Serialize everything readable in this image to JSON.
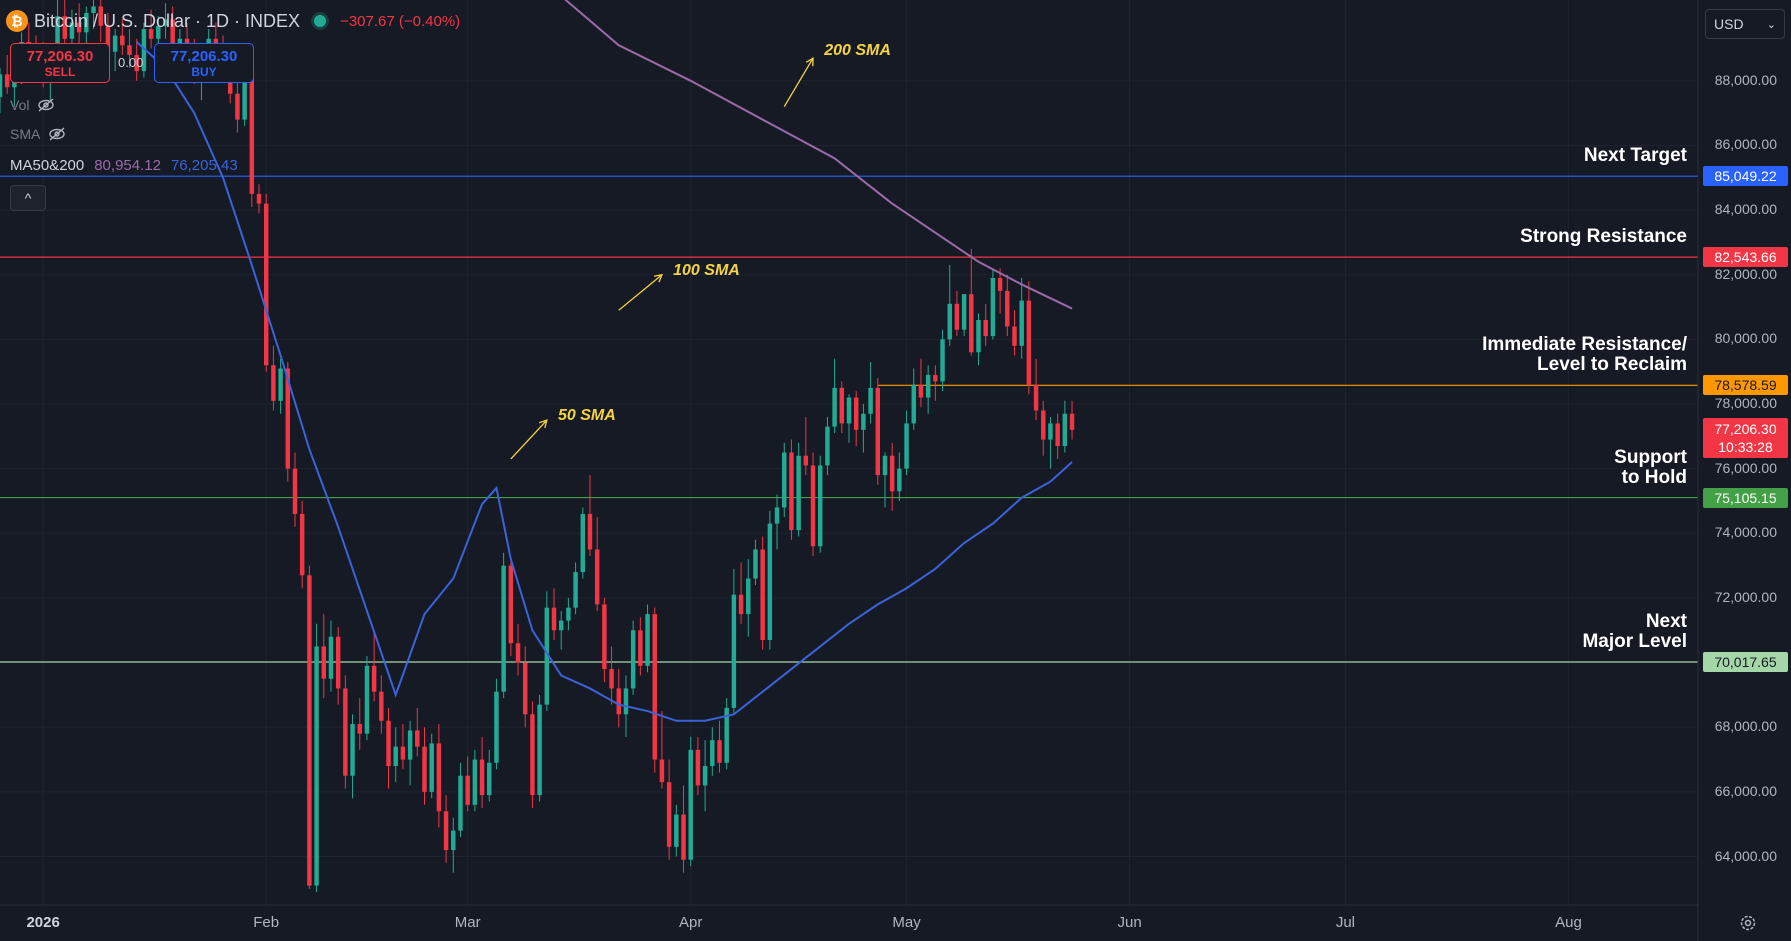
{
  "header": {
    "coin_icon": "bitcoin-icon",
    "symbol": "Bitcoin / U.S. Dollar · 1D · INDEX",
    "change": "−307.67 (−0.40%)"
  },
  "trade": {
    "sell_price": "77,206.30",
    "sell_label": "SELL",
    "spread": "0.00",
    "buy_price": "77,206.30",
    "buy_label": "BUY"
  },
  "legend": {
    "vol_label": "Vol",
    "sma_label": "SMA",
    "ma_name": "MA50&200",
    "ma_value_1": "80,954.12",
    "ma_value_2": "76,205.43",
    "collapse_icon": "^"
  },
  "currency": {
    "selected": "USD"
  },
  "levels": [
    {
      "name": "Next Target",
      "price": 85049.22,
      "price_label": "85,049.22",
      "color": "#2962ff"
    },
    {
      "name": "Strong Resistance",
      "price": 82543.66,
      "price_label": "82,543.66",
      "color": "#f23645"
    },
    {
      "name": "Immediate Resistance/\nLevel to Reclaim",
      "price": 78578.59,
      "price_label": "78,578.59",
      "color": "#ff9800"
    },
    {
      "name": "Support\nto Hold",
      "price": 75105.15,
      "price_label": "75,105.15",
      "color": "#43a047"
    },
    {
      "name": "Next\nMajor Level",
      "price": 70017.65,
      "price_label": "70,017.65",
      "color": "#a5d6a7"
    }
  ],
  "current_price": {
    "price": 77206.3,
    "label": "77,206.30",
    "countdown": "10:33:28"
  },
  "sma_annotations": [
    "200 SMA",
    "100 SMA",
    "50 SMA"
  ],
  "chart_data": {
    "type": "candlestick",
    "title": "Bitcoin / U.S. Dollar · 1D · INDEX",
    "ylim": [
      62500,
      90500
    ],
    "y_ticks": [
      64000,
      66000,
      68000,
      70000,
      72000,
      74000,
      76000,
      78000,
      80000,
      82000,
      84000,
      86000,
      88000
    ],
    "y_tick_labels": [
      "64,000.00",
      "66,000.00",
      "68,000.00",
      "70,000.00",
      "72,000.00",
      "74,000.00",
      "76,000.00",
      "78,000.00",
      "80,000.00",
      "82,000.00",
      "84,000.00",
      "86,000.00",
      "88,000.00"
    ],
    "x_ticks": [
      {
        "label": "2026",
        "day": 0,
        "bold": true
      },
      {
        "label": "Feb",
        "day": 31
      },
      {
        "label": "Mar",
        "day": 59
      },
      {
        "label": "Apr",
        "day": 90
      },
      {
        "label": "May",
        "day": 120
      },
      {
        "label": "Jun",
        "day": 151
      },
      {
        "label": "Jul",
        "day": 181
      },
      {
        "label": "Aug",
        "day": 212
      }
    ],
    "x_range_days": [
      -6,
      230
    ],
    "ohlc": [
      [
        -6,
        87500,
        88400,
        87000,
        88200
      ],
      [
        -5,
        88200,
        88800,
        87600,
        87800
      ],
      [
        -4,
        87800,
        88300,
        87200,
        88100
      ],
      [
        -3,
        88100,
        89500,
        87900,
        89200
      ],
      [
        -2,
        89200,
        89800,
        88600,
        88900
      ],
      [
        -1,
        88900,
        89400,
        88200,
        88700
      ],
      [
        0,
        88700,
        89200,
        87800,
        88000
      ],
      [
        1,
        88000,
        88600,
        87400,
        88400
      ],
      [
        2,
        88400,
        90500,
        88200,
        90000
      ],
      [
        3,
        90000,
        90500,
        89000,
        89300
      ],
      [
        4,
        89300,
        90200,
        88800,
        89800
      ],
      [
        5,
        89800,
        90400,
        89100,
        89500
      ],
      [
        6,
        89500,
        90300,
        88900,
        90100
      ],
      [
        7,
        90100,
        90800,
        89600,
        90300
      ],
      [
        8,
        90300,
        90600,
        89200,
        89700
      ],
      [
        9,
        89700,
        90100,
        88700,
        88900
      ],
      [
        10,
        88900,
        89600,
        88300,
        89400
      ],
      [
        11,
        89400,
        89900,
        88800,
        89100
      ],
      [
        12,
        89100,
        89600,
        88400,
        88800
      ],
      [
        13,
        88800,
        89300,
        88000,
        88300
      ],
      [
        14,
        88300,
        89800,
        88100,
        89600
      ],
      [
        15,
        89600,
        90200,
        89000,
        89300
      ],
      [
        16,
        89300,
        90000,
        88900,
        89700
      ],
      [
        17,
        89700,
        90400,
        89300,
        89900
      ],
      [
        18,
        89900,
        90300,
        88900,
        89000
      ],
      [
        19,
        89000,
        89600,
        88400,
        89300
      ],
      [
        20,
        89300,
        89800,
        88600,
        88900
      ],
      [
        21,
        88900,
        89300,
        87900,
        88100
      ],
      [
        22,
        88100,
        88800,
        87400,
        88500
      ],
      [
        23,
        88500,
        89600,
        88300,
        89300
      ],
      [
        24,
        89300,
        89800,
        88700,
        89100
      ],
      [
        25,
        89100,
        89400,
        88200,
        88500
      ],
      [
        26,
        88500,
        88900,
        87300,
        87600
      ],
      [
        27,
        87600,
        88200,
        86400,
        86800
      ],
      [
        28,
        86800,
        88600,
        86600,
        88300
      ],
      [
        29,
        88300,
        88800,
        84100,
        84500
      ],
      [
        30,
        84500,
        84800,
        83900,
        84200
      ],
      [
        31,
        84200,
        84500,
        79000,
        79200
      ],
      [
        32,
        79200,
        79800,
        77800,
        78100
      ],
      [
        33,
        78100,
        79400,
        77700,
        79100
      ],
      [
        34,
        79100,
        79300,
        75600,
        76000
      ],
      [
        35,
        76000,
        76500,
        74200,
        74600
      ],
      [
        36,
        74600,
        75000,
        72300,
        72700
      ],
      [
        37,
        72700,
        73000,
        63000,
        63100
      ],
      [
        38,
        63100,
        71200,
        62900,
        70500
      ],
      [
        39,
        70500,
        71500,
        68900,
        69500
      ],
      [
        40,
        69500,
        71300,
        69100,
        70800
      ],
      [
        41,
        70800,
        71100,
        68700,
        69200
      ],
      [
        42,
        69200,
        69600,
        66100,
        66500
      ],
      [
        43,
        66500,
        68400,
        65800,
        68100
      ],
      [
        44,
        68100,
        68900,
        67300,
        67800
      ],
      [
        45,
        67800,
        70200,
        67600,
        69900
      ],
      [
        46,
        69900,
        71000,
        68800,
        69100
      ],
      [
        47,
        69100,
        69600,
        67800,
        68200
      ],
      [
        48,
        68200,
        68600,
        66100,
        66800
      ],
      [
        49,
        66800,
        68000,
        66300,
        67400
      ],
      [
        50,
        67400,
        68100,
        66700,
        67000
      ],
      [
        51,
        67000,
        68200,
        66200,
        67900
      ],
      [
        52,
        67900,
        68600,
        67100,
        67400
      ],
      [
        53,
        67400,
        68000,
        65600,
        66000
      ],
      [
        54,
        66000,
        67800,
        65800,
        67500
      ],
      [
        55,
        67500,
        68100,
        64900,
        65400
      ],
      [
        56,
        65400,
        65900,
        63800,
        64200
      ],
      [
        57,
        64200,
        65200,
        63500,
        64800
      ],
      [
        58,
        64800,
        66900,
        64600,
        66500
      ],
      [
        59,
        66500,
        67100,
        65400,
        65600
      ],
      [
        60,
        65600,
        67300,
        65400,
        67000
      ],
      [
        61,
        67000,
        67700,
        65500,
        65900
      ],
      [
        62,
        65900,
        67300,
        65700,
        66900
      ],
      [
        63,
        66900,
        69500,
        66700,
        69100
      ],
      [
        64,
        69100,
        73400,
        68900,
        73000
      ],
      [
        65,
        73000,
        73100,
        70200,
        70600
      ],
      [
        66,
        70600,
        71200,
        69600,
        70000
      ],
      [
        67,
        70000,
        70500,
        68000,
        68400
      ],
      [
        68,
        68400,
        68800,
        65500,
        65900
      ],
      [
        69,
        65900,
        69000,
        65700,
        68700
      ],
      [
        70,
        68700,
        72200,
        68500,
        71700
      ],
      [
        71,
        71700,
        72300,
        70700,
        71000
      ],
      [
        72,
        71000,
        71600,
        70400,
        71300
      ],
      [
        73,
        71300,
        72000,
        71000,
        71700
      ],
      [
        74,
        71700,
        73100,
        71500,
        72800
      ],
      [
        75,
        72800,
        74800,
        72600,
        74600
      ],
      [
        76,
        74600,
        75800,
        73300,
        73500
      ],
      [
        77,
        73500,
        74500,
        71600,
        71800
      ],
      [
        78,
        71800,
        72000,
        69400,
        69800
      ],
      [
        79,
        69800,
        70500,
        68700,
        69200
      ],
      [
        80,
        69200,
        69800,
        68000,
        68400
      ],
      [
        81,
        68400,
        69600,
        67700,
        69200
      ],
      [
        82,
        69200,
        71300,
        69000,
        71000
      ],
      [
        83,
        71000,
        71400,
        69600,
        69900
      ],
      [
        84,
        69900,
        71800,
        69700,
        71500
      ],
      [
        85,
        71500,
        71700,
        66600,
        67000
      ],
      [
        86,
        67000,
        68500,
        66100,
        66300
      ],
      [
        87,
        66300,
        67000,
        63900,
        64300
      ],
      [
        88,
        64300,
        65600,
        64000,
        65300
      ],
      [
        89,
        65300,
        66200,
        63500,
        63900
      ],
      [
        90,
        63900,
        67700,
        63700,
        67300
      ],
      [
        91,
        67300,
        67700,
        65900,
        66200
      ],
      [
        92,
        66200,
        67600,
        65400,
        66800
      ],
      [
        93,
        66800,
        68000,
        66500,
        67600
      ],
      [
        94,
        67600,
        68200,
        66600,
        66900
      ],
      [
        95,
        66900,
        68900,
        66700,
        68600
      ],
      [
        96,
        68600,
        72900,
        68400,
        72100
      ],
      [
        97,
        72100,
        73100,
        71200,
        71500
      ],
      [
        98,
        71500,
        73200,
        70800,
        72600
      ],
      [
        99,
        72600,
        73800,
        72400,
        73500
      ],
      [
        100,
        73500,
        73900,
        70400,
        70700
      ],
      [
        101,
        70700,
        74700,
        70400,
        74300
      ],
      [
        102,
        74300,
        75200,
        73500,
        74800
      ],
      [
        103,
        74800,
        76800,
        74500,
        76500
      ],
      [
        104,
        76500,
        76900,
        73800,
        74100
      ],
      [
        105,
        74100,
        76800,
        73900,
        76400
      ],
      [
        106,
        76400,
        77600,
        75800,
        76100
      ],
      [
        107,
        76100,
        76500,
        73300,
        73600
      ],
      [
        108,
        73600,
        76400,
        73400,
        76100
      ],
      [
        109,
        76100,
        77600,
        75800,
        77300
      ],
      [
        110,
        77300,
        79400,
        77100,
        78500
      ],
      [
        111,
        78500,
        78700,
        77100,
        77400
      ],
      [
        112,
        77400,
        78300,
        76800,
        78200
      ],
      [
        113,
        78200,
        78400,
        76700,
        77200
      ],
      [
        114,
        77200,
        78000,
        76500,
        77700
      ],
      [
        115,
        77700,
        79300,
        77400,
        78500
      ],
      [
        116,
        78500,
        78800,
        75500,
        75800
      ],
      [
        117,
        75800,
        76500,
        74800,
        76400
      ],
      [
        118,
        76400,
        76800,
        74700,
        75300
      ],
      [
        119,
        75300,
        76500,
        75000,
        76000
      ],
      [
        120,
        76000,
        77800,
        75800,
        77400
      ],
      [
        121,
        77400,
        79100,
        77200,
        78600
      ],
      [
        122,
        78600,
        79400,
        77900,
        78200
      ],
      [
        123,
        78200,
        79200,
        77700,
        78900
      ],
      [
        124,
        78900,
        79200,
        78100,
        78700
      ],
      [
        125,
        78700,
        80300,
        78400,
        80000
      ],
      [
        126,
        80000,
        82300,
        79800,
        81100
      ],
      [
        127,
        81100,
        81500,
        80100,
        80300
      ],
      [
        128,
        80300,
        81400,
        80100,
        81400
      ],
      [
        129,
        81400,
        82800,
        79500,
        79600
      ],
      [
        130,
        79600,
        80800,
        79200,
        80600
      ],
      [
        131,
        80600,
        81100,
        79800,
        80100
      ],
      [
        132,
        80100,
        82200,
        80000,
        81900
      ],
      [
        133,
        81900,
        82200,
        80800,
        81500
      ],
      [
        134,
        81500,
        82000,
        80100,
        80400
      ],
      [
        135,
        80400,
        80900,
        79500,
        79800
      ],
      [
        136,
        79800,
        81900,
        79400,
        81200
      ],
      [
        137,
        81200,
        81800,
        78300,
        78600
      ],
      [
        138,
        78600,
        79400,
        77500,
        77800
      ],
      [
        139,
        77800,
        78100,
        76400,
        76900
      ],
      [
        140,
        76900,
        77600,
        76000,
        77400
      ],
      [
        141,
        77400,
        77700,
        76300,
        76700
      ],
      [
        142,
        76700,
        78100,
        76500,
        77700
      ],
      [
        143,
        77700,
        78100,
        76900,
        77200
      ]
    ],
    "series": [
      {
        "name": "MA 50",
        "color": "#3b63d9",
        "points": [
          [
            13,
            89200
          ],
          [
            17,
            88400
          ],
          [
            21,
            87000
          ],
          [
            25,
            85000
          ],
          [
            29,
            82300
          ],
          [
            33,
            79500
          ],
          [
            37,
            76600
          ],
          [
            41,
            74200
          ],
          [
            45,
            71600
          ],
          [
            49,
            69000
          ],
          [
            53,
            71500
          ],
          [
            57,
            72600
          ],
          [
            61,
            74900
          ],
          [
            63,
            75400
          ],
          [
            65,
            73200
          ],
          [
            68,
            71000
          ],
          [
            72,
            69600
          ],
          [
            76,
            69200
          ],
          [
            80,
            68700
          ],
          [
            84,
            68500
          ],
          [
            88,
            68200
          ],
          [
            92,
            68200
          ],
          [
            96,
            68400
          ],
          [
            100,
            69100
          ],
          [
            104,
            69800
          ],
          [
            108,
            70500
          ],
          [
            112,
            71200
          ],
          [
            116,
            71800
          ],
          [
            120,
            72300
          ],
          [
            124,
            72900
          ],
          [
            128,
            73700
          ],
          [
            132,
            74300
          ],
          [
            136,
            75100
          ],
          [
            140,
            75600
          ],
          [
            143,
            76205
          ]
        ]
      },
      {
        "name": "MA 200",
        "color": "#9c6aa8",
        "points": [
          [
            70,
            91000
          ],
          [
            80,
            89100
          ],
          [
            90,
            88000
          ],
          [
            100,
            86800
          ],
          [
            110,
            85600
          ],
          [
            118,
            84200
          ],
          [
            124,
            83300
          ],
          [
            130,
            82400
          ],
          [
            136,
            81700
          ],
          [
            143,
            80954
          ]
        ]
      }
    ]
  }
}
